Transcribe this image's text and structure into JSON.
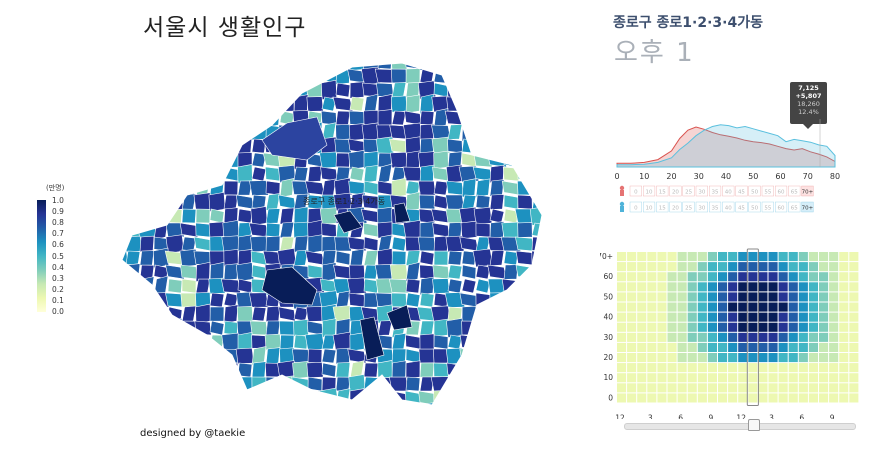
{
  "title": "서울시 생활인구",
  "credit": "designed by @taekie",
  "legend": {
    "title": "(만명)",
    "ticks": [
      "1.0",
      "0.9",
      "0.8",
      "0.7",
      "0.6",
      "0.5",
      "0.4",
      "0.3",
      "0.2",
      "0.1",
      "0.0"
    ],
    "colors": [
      "#081d58",
      "#253494",
      "#225ea8",
      "#1d91c0",
      "#41b6c4",
      "#7fcdbb",
      "#c7e9b4",
      "#edf8b1",
      "#ffffd9"
    ]
  },
  "map": {
    "selected_label": "종로구 종로1·2·3·4가동"
  },
  "panel": {
    "region": "종로구 종로1·2·3·4가동",
    "time": "오후 1"
  },
  "tooltip": {
    "line1": "7,125",
    "line2": "+5,807",
    "line3": "18,260",
    "line4": "12.4%"
  },
  "chart_data": [
    {
      "type": "area",
      "xlabel": "",
      "ylabel": "",
      "x_ticks": [
        "0",
        "10",
        "20",
        "30",
        "40",
        "50",
        "60",
        "70",
        "80"
      ],
      "xlim": [
        0,
        80
      ],
      "x": [
        0,
        5,
        10,
        15,
        20,
        23,
        26,
        29,
        32,
        35,
        38,
        41,
        44,
        47,
        50,
        53,
        56,
        59,
        62,
        65,
        68,
        71,
        74,
        77,
        80
      ],
      "series": [
        {
          "color": "#d9534f",
          "values": [
            0.08,
            0.08,
            0.1,
            0.16,
            0.35,
            0.62,
            0.8,
            0.87,
            0.82,
            0.75,
            0.7,
            0.67,
            0.63,
            0.58,
            0.55,
            0.53,
            0.5,
            0.45,
            0.4,
            0.37,
            0.4,
            0.33,
            0.28,
            0.22,
            0.12
          ]
        },
        {
          "color": "#5bc0de",
          "values": [
            0.05,
            0.05,
            0.06,
            0.1,
            0.2,
            0.38,
            0.52,
            0.68,
            0.8,
            0.88,
            0.92,
            0.9,
            0.85,
            0.88,
            0.83,
            0.78,
            0.73,
            0.68,
            0.55,
            0.6,
            0.57,
            0.54,
            0.48,
            0.45,
            0.25
          ]
        }
      ],
      "age_rows": [
        {
          "icon": "female-icon",
          "color": "#e57373",
          "labels": [
            "0",
            "10",
            "15",
            "20",
            "25",
            "30",
            "35",
            "40",
            "45",
            "50",
            "55",
            "60",
            "65",
            "70+"
          ]
        },
        {
          "icon": "male-icon",
          "color": "#4fb3d9",
          "labels": [
            "0",
            "10",
            "15",
            "20",
            "25",
            "30",
            "35",
            "40",
            "45",
            "50",
            "55",
            "60",
            "65",
            "70+"
          ]
        }
      ]
    },
    {
      "type": "heatmap",
      "y_ticks": [
        "70+",
        "60",
        "50",
        "40",
        "30",
        "20",
        "10",
        "0"
      ],
      "x_ticks": [
        "12",
        "3",
        "6",
        "9",
        "12",
        "3",
        "6",
        "9"
      ],
      "rows": 15,
      "cols": 24,
      "selected_col": 13,
      "colors": [
        "#ffffd9",
        "#edf8b1",
        "#c7e9b4",
        "#7fcdbb",
        "#41b6c4",
        "#1d91c0",
        "#225ea8",
        "#253494",
        "#081d58"
      ]
    }
  ],
  "slider": {
    "value_hour": 13
  }
}
